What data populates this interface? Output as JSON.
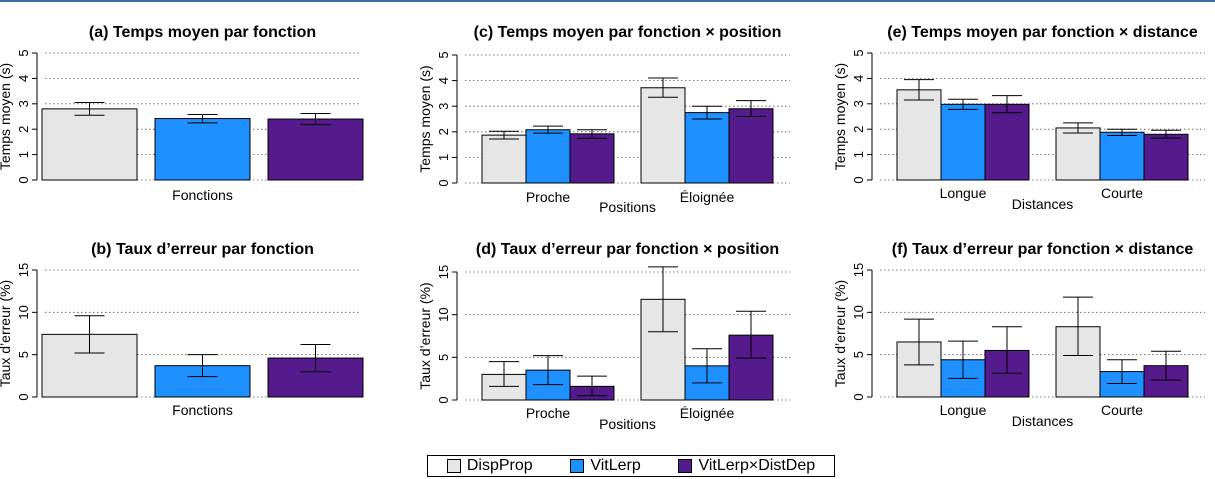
{
  "colors": {
    "DispProp": "#e6e6e6",
    "VitLerp": "#1e90ff",
    "VitLerp×DistDep": "#551a8b"
  },
  "legend": {
    "items": [
      "DispProp",
      "VitLerp",
      "VitLerp×DistDep"
    ]
  },
  "chart_data": [
    {
      "id": "a",
      "type": "bar",
      "title": "(a) Temps moyen par fonction",
      "ylabel": "Temps moyen (s)",
      "xlabel": "Fonctions",
      "ylim": [
        0,
        5
      ],
      "yticks": [
        0,
        1,
        2,
        3,
        4,
        5
      ],
      "grid": true,
      "categories": [
        ""
      ],
      "series": [
        {
          "name": "DispProp",
          "values": [
            2.8
          ],
          "ci": [
            [
              2.55,
              3.05
            ]
          ]
        },
        {
          "name": "VitLerp",
          "values": [
            2.42
          ],
          "ci": [
            [
              2.25,
              2.58
            ]
          ]
        },
        {
          "name": "VitLerp×DistDep",
          "values": [
            2.4
          ],
          "ci": [
            [
              2.18,
              2.62
            ]
          ]
        }
      ]
    },
    {
      "id": "c",
      "type": "bar",
      "title": "(c) Temps moyen par fonction × position",
      "ylabel": "Temps moyen (s)",
      "xlabel": "Positions",
      "ylim": [
        0,
        5
      ],
      "yticks": [
        0,
        1,
        2,
        3,
        4,
        5
      ],
      "grid": true,
      "categories": [
        "Proche",
        "Éloignée"
      ],
      "series": [
        {
          "name": "DispProp",
          "values": [
            1.87,
            3.72
          ],
          "ci": [
            [
              1.72,
              2.02
            ],
            [
              3.35,
              4.1
            ]
          ]
        },
        {
          "name": "VitLerp",
          "values": [
            2.08,
            2.75
          ],
          "ci": [
            [
              1.95,
              2.22
            ],
            [
              2.5,
              3.0
            ]
          ]
        },
        {
          "name": "VitLerp×DistDep",
          "values": [
            1.92,
            2.9
          ],
          "ci": [
            [
              1.75,
              2.08
            ],
            [
              2.6,
              3.22
            ]
          ]
        }
      ]
    },
    {
      "id": "e",
      "type": "bar",
      "title": "(e) Temps moyen par fonction × distance",
      "ylabel": "Temps moyen (s)",
      "xlabel": "Distances",
      "ylim": [
        0,
        5
      ],
      "yticks": [
        0,
        1,
        2,
        3,
        4,
        5
      ],
      "grid": true,
      "categories": [
        "Longue",
        "Courte"
      ],
      "series": [
        {
          "name": "DispProp",
          "values": [
            3.55,
            2.05
          ],
          "ci": [
            [
              3.15,
              3.95
            ],
            [
              1.85,
              2.25
            ]
          ]
        },
        {
          "name": "VitLerp",
          "values": [
            2.98,
            1.88
          ],
          "ci": [
            [
              2.78,
              3.18
            ],
            [
              1.75,
              2.0
            ]
          ]
        },
        {
          "name": "VitLerp×DistDep",
          "values": [
            2.98,
            1.8
          ],
          "ci": [
            [
              2.65,
              3.32
            ],
            [
              1.65,
              1.96
            ]
          ]
        }
      ]
    },
    {
      "id": "b",
      "type": "bar",
      "title": "(b) Taux d’erreur par fonction",
      "ylabel": "Taux d’erreur (%)",
      "xlabel": "Fonctions",
      "ylim": [
        0,
        15
      ],
      "yticks": [
        0,
        5,
        10,
        15
      ],
      "grid": true,
      "categories": [
        ""
      ],
      "series": [
        {
          "name": "DispProp",
          "values": [
            7.4
          ],
          "ci": [
            [
              5.2,
              9.6
            ]
          ]
        },
        {
          "name": "VitLerp",
          "values": [
            3.7
          ],
          "ci": [
            [
              2.4,
              5.0
            ]
          ]
        },
        {
          "name": "VitLerp×DistDep",
          "values": [
            4.6
          ],
          "ci": [
            [
              3.0,
              6.2
            ]
          ]
        }
      ]
    },
    {
      "id": "d",
      "type": "bar",
      "title": "(d) Taux d’erreur par fonction × position",
      "ylabel": "Taux d’erreur (%)",
      "xlabel": "Positions",
      "ylim": [
        0,
        15
      ],
      "yticks": [
        0,
        5,
        10,
        15
      ],
      "grid": true,
      "categories": [
        "Proche",
        "Éloignée"
      ],
      "series": [
        {
          "name": "DispProp",
          "values": [
            3.0,
            11.8
          ],
          "ci": [
            [
              1.6,
              4.5
            ],
            [
              8.0,
              15.6
            ]
          ]
        },
        {
          "name": "VitLerp",
          "values": [
            3.5,
            4.0
          ],
          "ci": [
            [
              1.8,
              5.2
            ],
            [
              2.0,
              6.0
            ]
          ]
        },
        {
          "name": "VitLerp×DistDep",
          "values": [
            1.6,
            7.6
          ],
          "ci": [
            [
              0.5,
              2.8
            ],
            [
              4.9,
              10.4
            ]
          ]
        }
      ]
    },
    {
      "id": "f",
      "type": "bar",
      "title": "(f) Taux d’erreur par fonction × distance",
      "ylabel": "Taux d’erreur (%)",
      "xlabel": "Distances",
      "ylim": [
        0,
        15
      ],
      "yticks": [
        0,
        5,
        10,
        15
      ],
      "grid": true,
      "categories": [
        "Longue",
        "Courte"
      ],
      "series": [
        {
          "name": "DispProp",
          "values": [
            6.5,
            8.3
          ],
          "ci": [
            [
              3.8,
              9.2
            ],
            [
              4.9,
              11.8
            ]
          ]
        },
        {
          "name": "VitLerp",
          "values": [
            4.4,
            3.0
          ],
          "ci": [
            [
              2.2,
              6.6
            ],
            [
              1.6,
              4.4
            ]
          ]
        },
        {
          "name": "VitLerp×DistDep",
          "values": [
            5.5,
            3.7
          ],
          "ci": [
            [
              2.8,
              8.3
            ],
            [
              2.0,
              5.4
            ]
          ]
        }
      ]
    }
  ]
}
